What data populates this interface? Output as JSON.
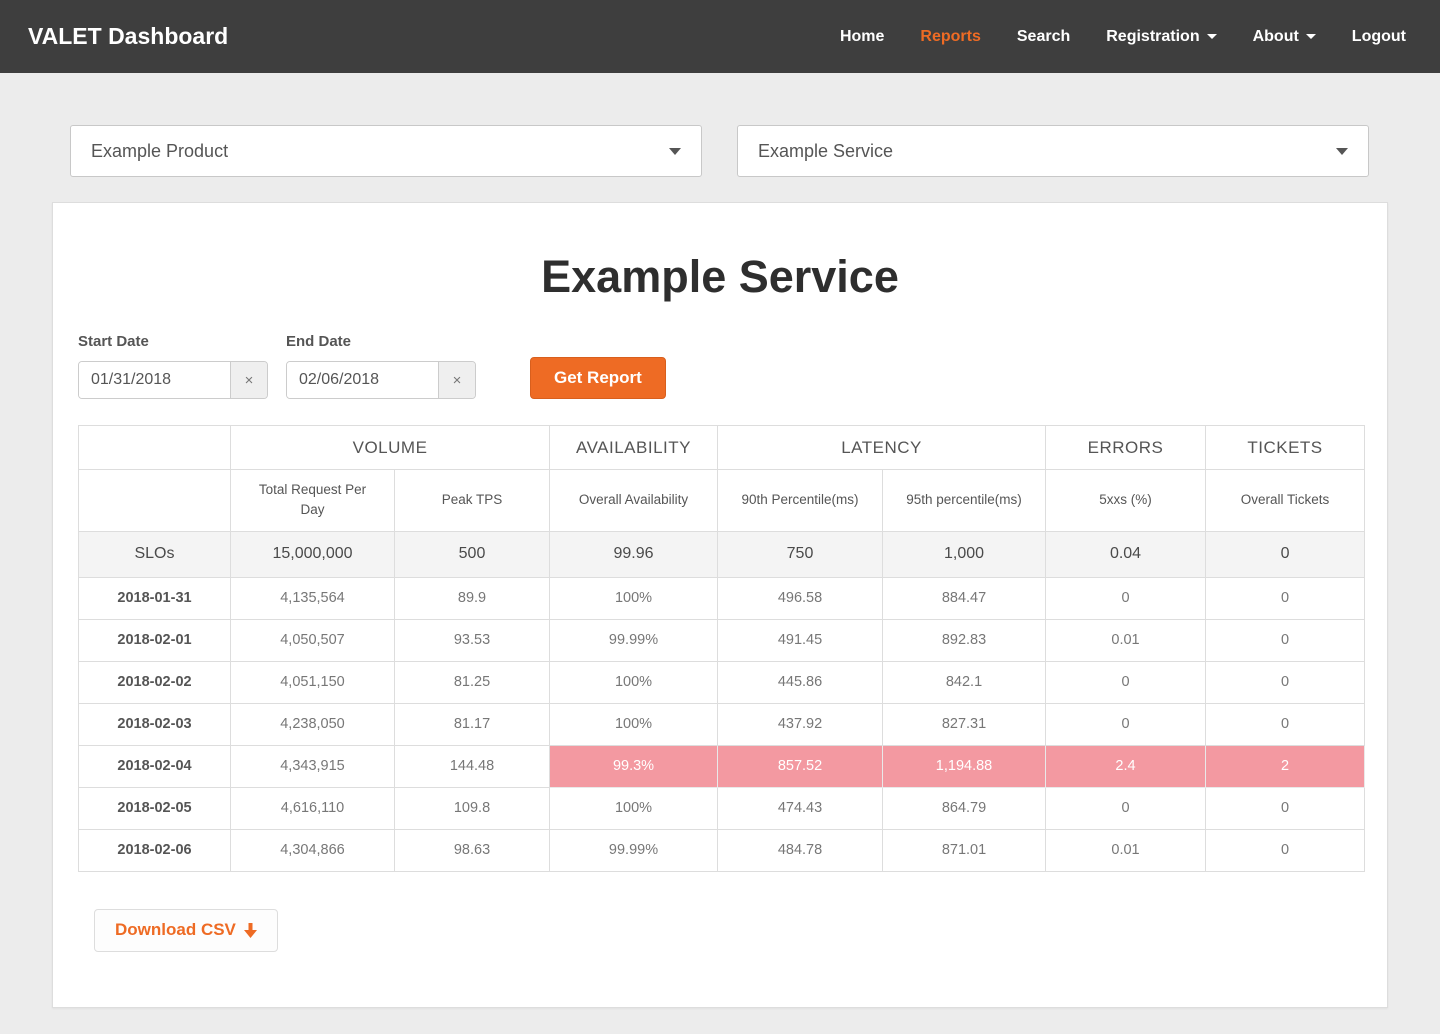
{
  "navbar": {
    "brand": "VALET Dashboard",
    "items": [
      {
        "label": "Home",
        "active": false,
        "caret": false
      },
      {
        "label": "Reports",
        "active": true,
        "caret": false
      },
      {
        "label": "Search",
        "active": false,
        "caret": false
      },
      {
        "label": "Registration",
        "active": false,
        "caret": true
      },
      {
        "label": "About",
        "active": false,
        "caret": true
      },
      {
        "label": "Logout",
        "active": false,
        "caret": false
      }
    ]
  },
  "selectors": {
    "product_value": "Example Product",
    "service_value": "Example Service"
  },
  "report": {
    "title": "Example Service",
    "start_date_label": "Start Date",
    "end_date_label": "End Date",
    "start_date_value": "01/31/2018",
    "end_date_value": "02/06/2018",
    "clear_symbol": "×",
    "get_report_label": "Get Report",
    "download_csv_label": "Download CSV"
  },
  "table": {
    "group_headers": [
      {
        "label": "",
        "span": 1
      },
      {
        "label": "VOLUME",
        "span": 2
      },
      {
        "label": "AVAILABILITY",
        "span": 1
      },
      {
        "label": "LATENCY",
        "span": 2
      },
      {
        "label": "ERRORS",
        "span": 1
      },
      {
        "label": "TICKETS",
        "span": 1
      }
    ],
    "sub_headers": [
      "",
      "Total Request Per Day",
      "Peak TPS",
      "Overall Availability",
      "90th Percentile(ms)",
      "95th percentile(ms)",
      "5xxs (%)",
      "Overall Tickets"
    ],
    "slo_row": {
      "label": "SLOs",
      "values": [
        "15,000,000",
        "500",
        "99.96",
        "750",
        "1,000",
        "0.04",
        "0"
      ]
    },
    "rows": [
      {
        "date": "2018-01-31",
        "values": [
          "4,135,564",
          "89.9",
          "100%",
          "496.58",
          "884.47",
          "0",
          "0"
        ],
        "breach": []
      },
      {
        "date": "2018-02-01",
        "values": [
          "4,050,507",
          "93.53",
          "99.99%",
          "491.45",
          "892.83",
          "0.01",
          "0"
        ],
        "breach": []
      },
      {
        "date": "2018-02-02",
        "values": [
          "4,051,150",
          "81.25",
          "100%",
          "445.86",
          "842.1",
          "0",
          "0"
        ],
        "breach": []
      },
      {
        "date": "2018-02-03",
        "values": [
          "4,238,050",
          "81.17",
          "100%",
          "437.92",
          "827.31",
          "0",
          "0"
        ],
        "breach": []
      },
      {
        "date": "2018-02-04",
        "values": [
          "4,343,915",
          "144.48",
          "99.3%",
          "857.52",
          "1,194.88",
          "2.4",
          "2"
        ],
        "breach": [
          2,
          3,
          4,
          5,
          6
        ]
      },
      {
        "date": "2018-02-05",
        "values": [
          "4,616,110",
          "109.8",
          "100%",
          "474.43",
          "864.79",
          "0",
          "0"
        ],
        "breach": []
      },
      {
        "date": "2018-02-06",
        "values": [
          "4,304,866",
          "98.63",
          "99.99%",
          "484.78",
          "871.01",
          "0.01",
          "0"
        ],
        "breach": []
      }
    ]
  },
  "colors": {
    "accent": "#EE6B24",
    "breach": "#F399A1",
    "navbar_bg": "#3E3E3E"
  }
}
